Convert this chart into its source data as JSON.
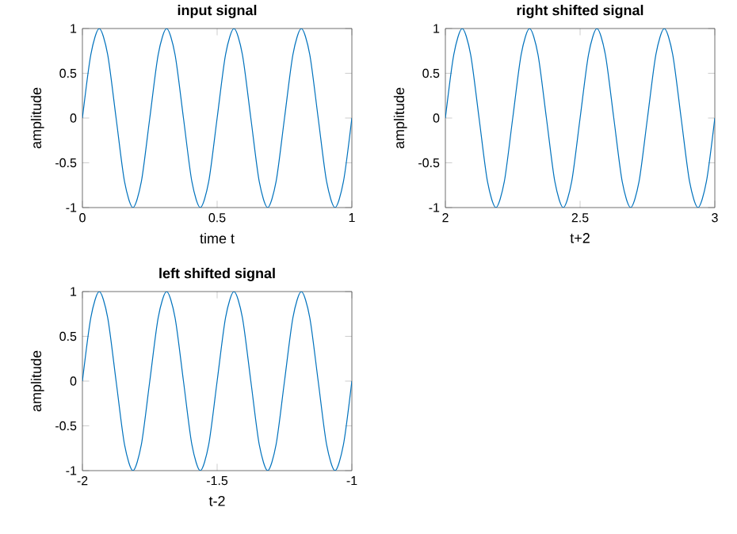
{
  "chart_data": [
    {
      "type": "line",
      "title": "input signal",
      "xlabel": "time t",
      "ylabel": "amplitude",
      "xlim": [
        0,
        1
      ],
      "ylim": [
        -1,
        1
      ],
      "xticks": [
        0,
        0.5,
        1
      ],
      "yticks": [
        -1,
        -0.5,
        0,
        0.5,
        1
      ],
      "series": [
        {
          "color": "#0072bd",
          "x": [
            0,
            0.03125,
            0.0625,
            0.09375,
            0.125,
            0.15625,
            0.1875,
            0.21875,
            0.25,
            0.28125,
            0.3125,
            0.34375,
            0.375,
            0.40625,
            0.4375,
            0.46875,
            0.5,
            0.53125,
            0.5625,
            0.59375,
            0.625,
            0.65625,
            0.6875,
            0.71875,
            0.75,
            0.78125,
            0.8125,
            0.84375,
            0.875,
            0.90625,
            0.9375,
            0.96875,
            1
          ],
          "values": [
            0,
            0.71,
            1,
            0.71,
            0,
            -0.71,
            -1,
            -0.71,
            0,
            0.71,
            1,
            0.71,
            0,
            -0.71,
            -1,
            -0.71,
            0,
            0.71,
            1,
            0.71,
            0,
            -0.71,
            -1,
            -0.71,
            0,
            0.71,
            1,
            0.71,
            0,
            -0.71,
            -1,
            -0.71,
            0
          ]
        }
      ]
    },
    {
      "type": "line",
      "title": "right shifted signal",
      "xlabel": "t+2",
      "ylabel": "amplitude",
      "xlim": [
        2,
        3
      ],
      "ylim": [
        -1,
        1
      ],
      "xticks": [
        2,
        2.5,
        3
      ],
      "yticks": [
        -1,
        -0.5,
        0,
        0.5,
        1
      ],
      "series": [
        {
          "color": "#0072bd",
          "x": [
            2,
            2.03125,
            2.0625,
            2.09375,
            2.125,
            2.15625,
            2.1875,
            2.21875,
            2.25,
            2.28125,
            2.3125,
            2.34375,
            2.375,
            2.40625,
            2.4375,
            2.46875,
            2.5,
            2.53125,
            2.5625,
            2.59375,
            2.625,
            2.65625,
            2.6875,
            2.71875,
            2.75,
            2.78125,
            2.8125,
            2.84375,
            2.875,
            2.90625,
            2.9375,
            2.96875,
            3
          ],
          "values": [
            0,
            0.71,
            1,
            0.71,
            0,
            -0.71,
            -1,
            -0.71,
            0,
            0.71,
            1,
            0.71,
            0,
            -0.71,
            -1,
            -0.71,
            0,
            0.71,
            1,
            0.71,
            0,
            -0.71,
            -1,
            -0.71,
            0,
            0.71,
            1,
            0.71,
            0,
            -0.71,
            -1,
            -0.71,
            0
          ]
        }
      ]
    },
    {
      "type": "line",
      "title": "left shifted signal",
      "xlabel": "t-2",
      "ylabel": "amplitude",
      "xlim": [
        -2,
        -1
      ],
      "ylim": [
        -1,
        1
      ],
      "xticks": [
        -2,
        -1.5,
        -1
      ],
      "yticks": [
        -1,
        -0.5,
        0,
        0.5,
        1
      ],
      "series": [
        {
          "color": "#0072bd",
          "x": [
            -2,
            -1.96875,
            -1.9375,
            -1.90625,
            -1.875,
            -1.84375,
            -1.8125,
            -1.78125,
            -1.75,
            -1.71875,
            -1.6875,
            -1.65625,
            -1.625,
            -1.59375,
            -1.5625,
            -1.53125,
            -1.5,
            -1.46875,
            -1.4375,
            -1.40625,
            -1.375,
            -1.34375,
            -1.3125,
            -1.28125,
            -1.25,
            -1.21875,
            -1.1875,
            -1.15625,
            -1.125,
            -1.09375,
            -1.0625,
            -1.03125,
            -1
          ],
          "values": [
            0,
            0.71,
            1,
            0.71,
            0,
            -0.71,
            -1,
            -0.71,
            0,
            0.71,
            1,
            0.71,
            0,
            -0.71,
            -1,
            -0.71,
            0,
            0.71,
            1,
            0.71,
            0,
            -0.71,
            -1,
            -0.71,
            0,
            0.71,
            1,
            0.71,
            0,
            -0.71,
            -1,
            -0.71,
            0
          ]
        }
      ]
    }
  ]
}
